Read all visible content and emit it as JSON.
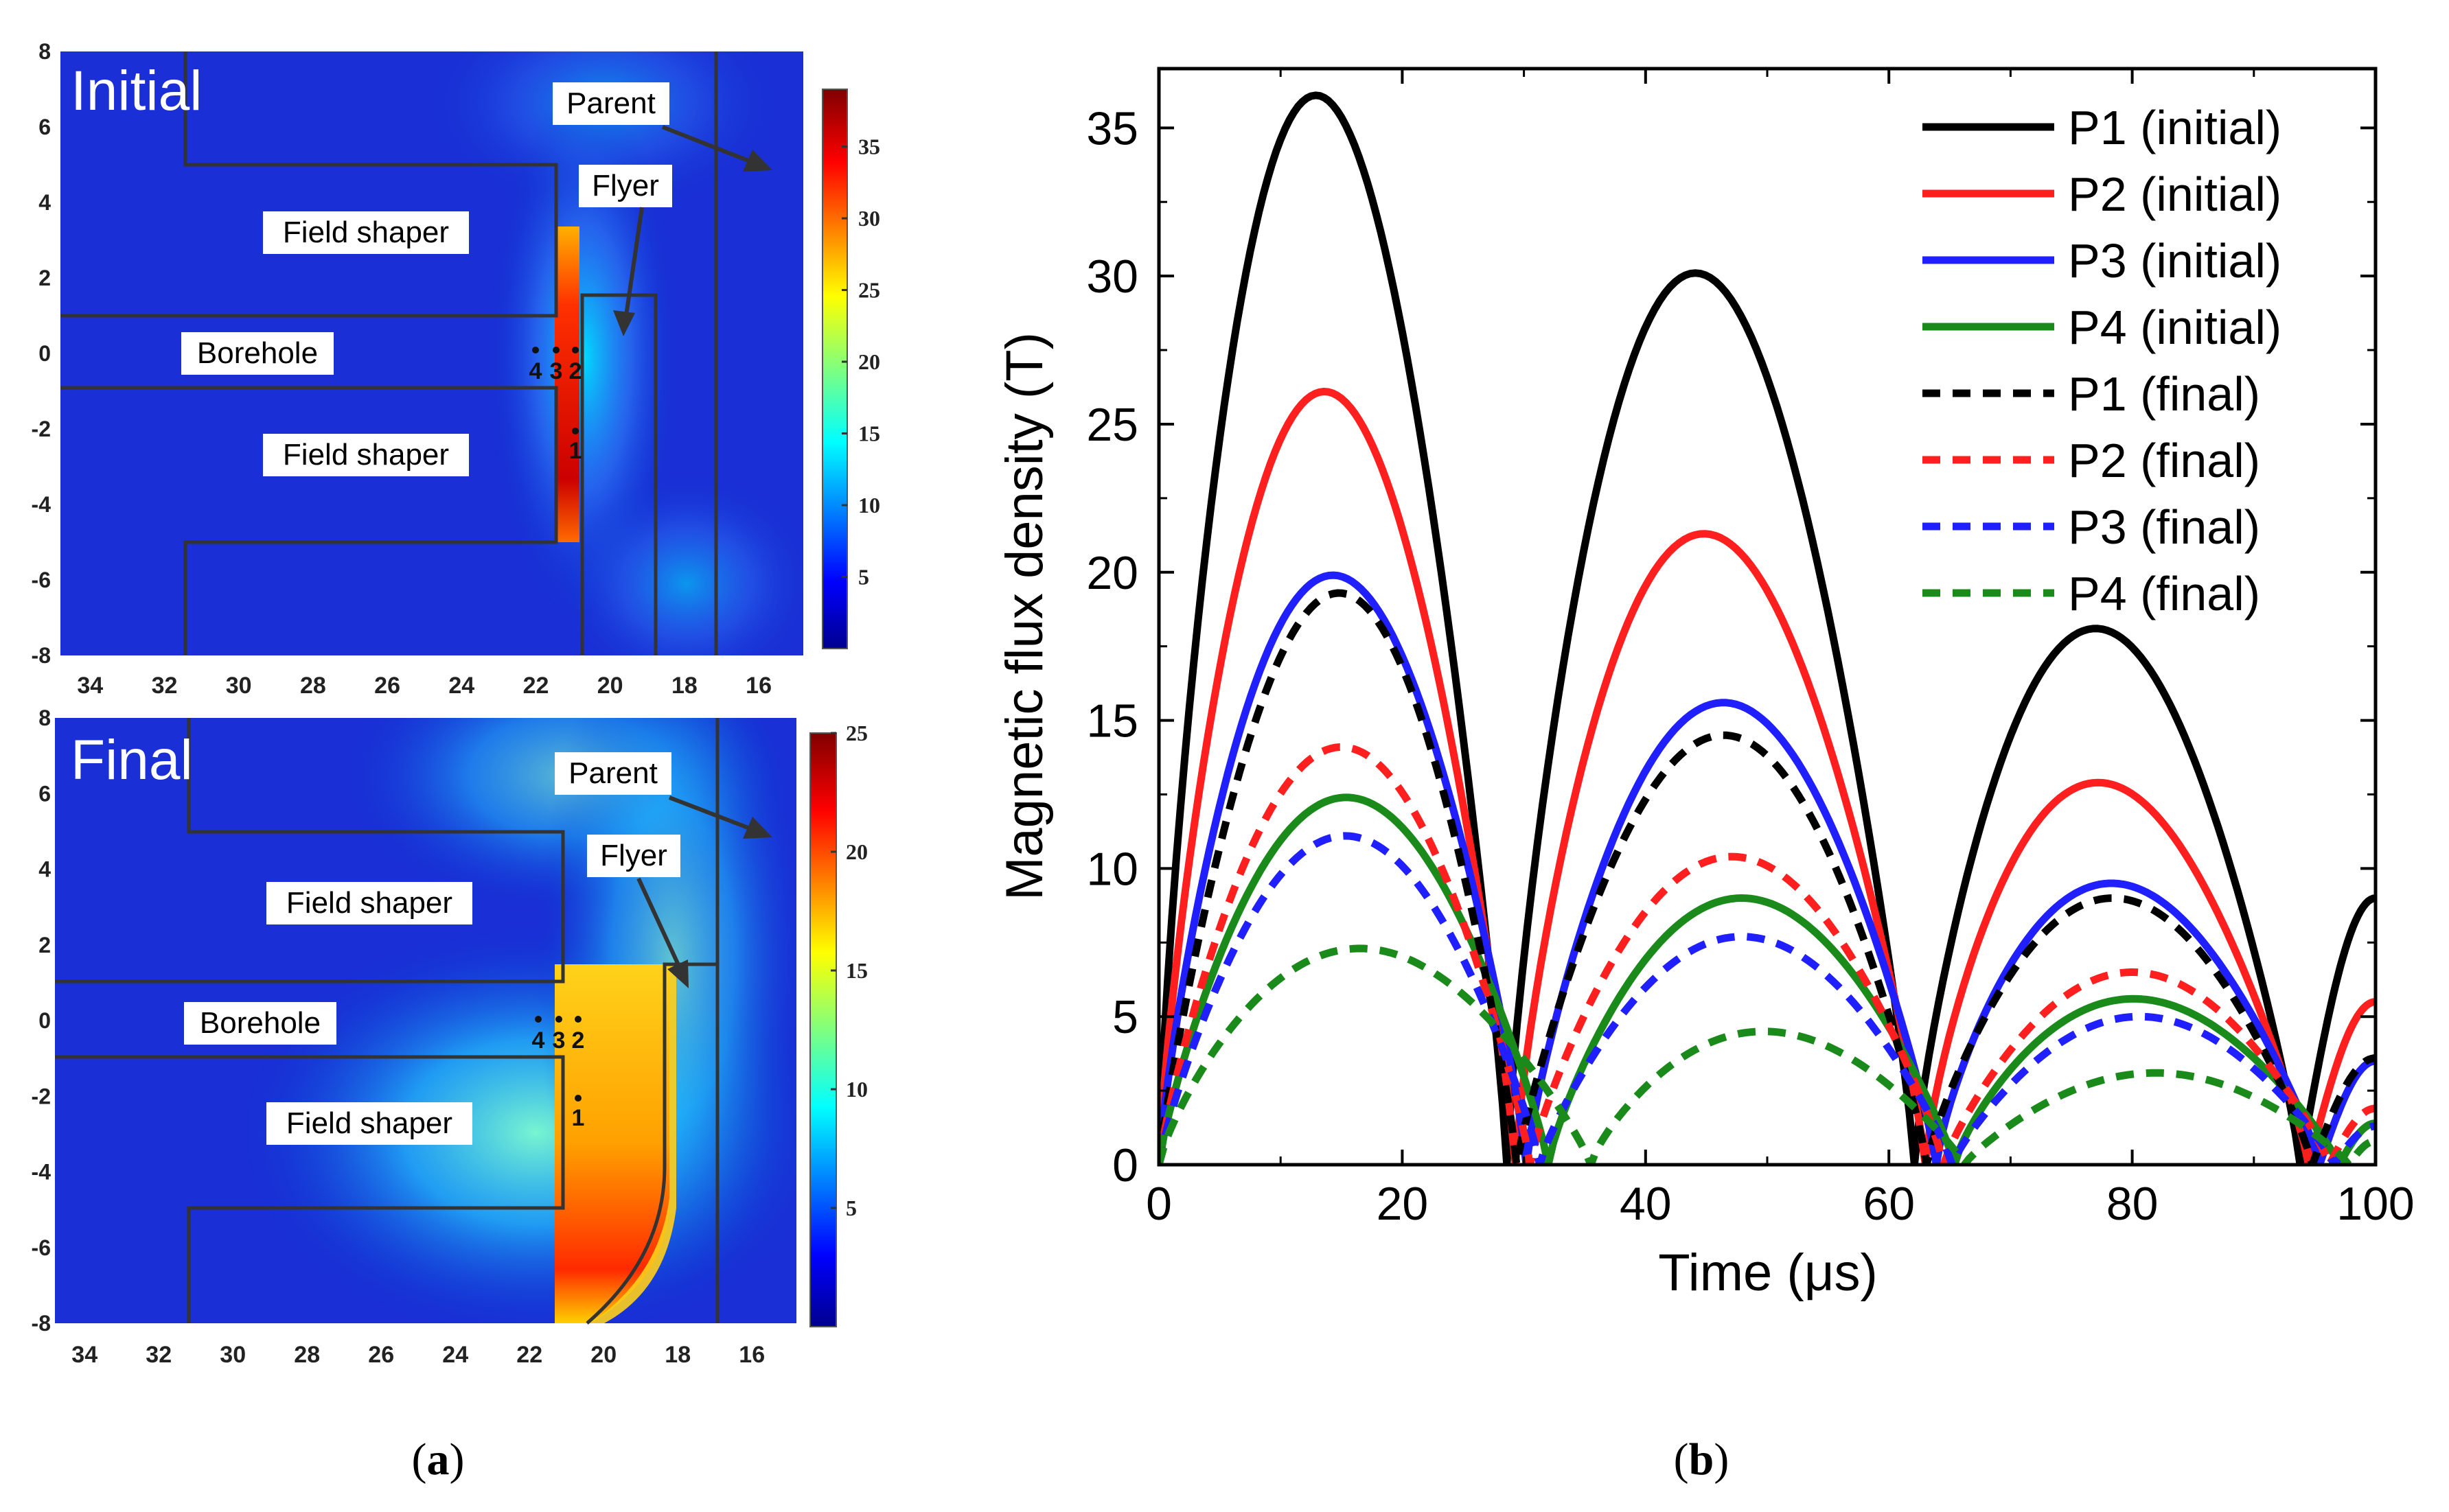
{
  "panel_a": {
    "caption": "a",
    "maps": [
      {
        "title": "Initial",
        "colorbar_ticks": [
          5,
          10,
          15,
          20,
          25,
          30,
          35
        ],
        "colorbar_max": 39,
        "x_ticks": [
          34,
          32,
          30,
          28,
          26,
          24,
          22,
          20,
          18,
          16
        ],
        "y_ticks": [
          8,
          6,
          4,
          2,
          0,
          -2,
          -4,
          -6,
          -8
        ],
        "labels": {
          "parent": "Parent",
          "flyer": "Flyer",
          "field_shaper_top": "Field shaper",
          "borehole": "Borehole",
          "field_shaper_bottom": "Field shaper"
        },
        "points": {
          "p4": "4",
          "p3": "3",
          "p2": "2",
          "p1": "1"
        }
      },
      {
        "title": "Final",
        "colorbar_ticks": [
          5,
          10,
          15,
          20,
          25
        ],
        "colorbar_max": 25,
        "x_ticks": [
          34,
          32,
          30,
          28,
          26,
          24,
          22,
          20,
          18,
          16
        ],
        "y_ticks": [
          8,
          6,
          4,
          2,
          0,
          -2,
          -4,
          -6,
          -8
        ],
        "labels": {
          "parent": "Parent",
          "flyer": "Flyer",
          "field_shaper_top": "Field shaper",
          "borehole": "Borehole",
          "field_shaper_bottom": "Field shaper"
        },
        "points": {
          "p4": "4",
          "p3": "3",
          "p2": "2",
          "p1": "1"
        }
      }
    ]
  },
  "chart_data": {
    "type": "line",
    "caption": "b",
    "xlabel": "Time (μs)",
    "ylabel": "Magnetic flux density (T)",
    "xlim": [
      0,
      100
    ],
    "ylim": [
      0,
      37
    ],
    "x_ticks": [
      0,
      20,
      40,
      60,
      80,
      100
    ],
    "y_ticks": [
      0,
      5,
      10,
      15,
      20,
      25,
      30,
      35
    ],
    "legend_position": "top-right",
    "series": [
      {
        "name": "P1 (initial)",
        "color": "#000000",
        "dashed": false,
        "points": [
          [
            0,
            0
          ],
          [
            12.9,
            36.1
          ],
          [
            28.6,
            0
          ],
          [
            44.1,
            30.1
          ],
          [
            62.1,
            0
          ],
          [
            77,
            18.1
          ],
          [
            93.8,
            0
          ],
          [
            100,
            9.0
          ]
        ]
      },
      {
        "name": "P2 (initial)",
        "color": "#ff1f1f",
        "dashed": false,
        "points": [
          [
            0,
            0
          ],
          [
            13.6,
            26.1
          ],
          [
            29.3,
            0
          ],
          [
            44.8,
            21.3
          ],
          [
            63,
            0
          ],
          [
            77.2,
            12.9
          ],
          [
            94.5,
            0
          ],
          [
            100,
            5.5
          ]
        ]
      },
      {
        "name": "P3 (initial)",
        "color": "#1f1fff",
        "dashed": false,
        "points": [
          [
            0,
            0
          ],
          [
            14.3,
            19.9
          ],
          [
            30.2,
            0
          ],
          [
            46.4,
            15.6
          ],
          [
            63.9,
            0
          ],
          [
            78.3,
            9.5
          ],
          [
            95.4,
            0
          ],
          [
            100,
            3.5
          ]
        ]
      },
      {
        "name": "P4 (initial)",
        "color": "#1a8a1a",
        "dashed": false,
        "points": [
          [
            0,
            0
          ],
          [
            15.4,
            12.4
          ],
          [
            32,
            0
          ],
          [
            47.9,
            9.0
          ],
          [
            65.4,
            0
          ],
          [
            80.1,
            5.6
          ],
          [
            97,
            0
          ],
          [
            100,
            1.4
          ]
        ]
      },
      {
        "name": "P1 (final)",
        "color": "#000000",
        "dashed": true,
        "points": [
          [
            0,
            0
          ],
          [
            14.8,
            19.3
          ],
          [
            29.4,
            0
          ],
          [
            46.4,
            14.5
          ],
          [
            63.1,
            0
          ],
          [
            78.4,
            9.0
          ],
          [
            94.8,
            0
          ],
          [
            100,
            3.6
          ]
        ]
      },
      {
        "name": "P2 (final)",
        "color": "#ff1f1f",
        "dashed": true,
        "points": [
          [
            0,
            0
          ],
          [
            15.0,
            14.1
          ],
          [
            30.5,
            0
          ],
          [
            47.1,
            10.4
          ],
          [
            64.5,
            0
          ],
          [
            80,
            6.5
          ],
          [
            96.2,
            0
          ],
          [
            100,
            1.9
          ]
        ]
      },
      {
        "name": "P3 (final)",
        "color": "#1f1fff",
        "dashed": true,
        "points": [
          [
            0,
            0
          ],
          [
            15.3,
            11.1
          ],
          [
            31.3,
            0
          ],
          [
            47.9,
            7.7
          ],
          [
            65.2,
            0
          ],
          [
            80.6,
            5.0
          ],
          [
            96.6,
            0
          ],
          [
            100,
            1.3
          ]
        ]
      },
      {
        "name": "P4 (final)",
        "color": "#1a8a1a",
        "dashed": true,
        "points": [
          [
            0,
            0
          ],
          [
            16.5,
            7.3
          ],
          [
            35.5,
            0
          ],
          [
            49.7,
            4.5
          ],
          [
            66.2,
            0
          ],
          [
            81.9,
            3.1
          ],
          [
            97.8,
            0
          ],
          [
            100,
            0.8
          ]
        ]
      }
    ]
  }
}
